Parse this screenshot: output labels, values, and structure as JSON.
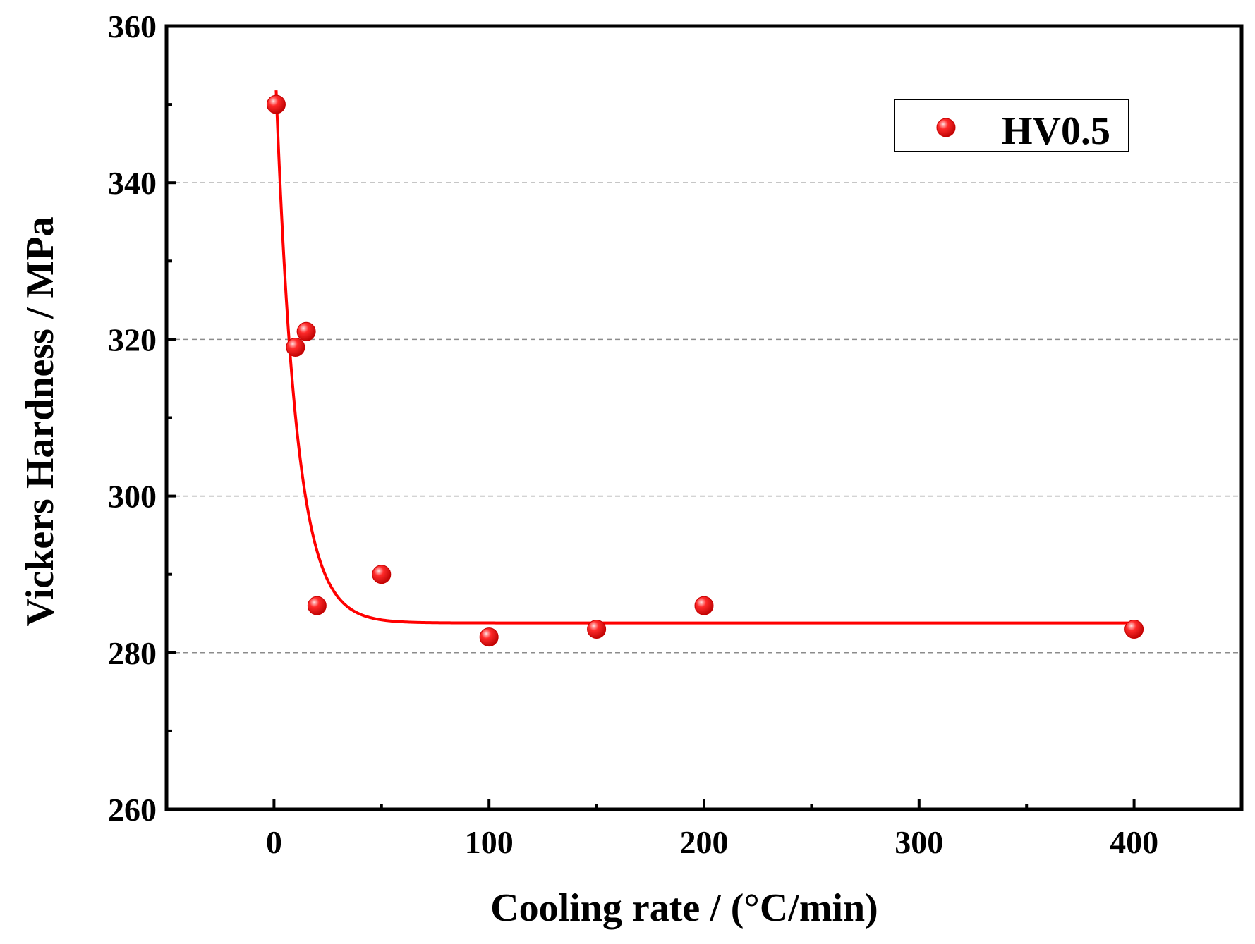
{
  "chart_data": {
    "type": "scatter",
    "title": "",
    "xlabel": "Cooling rate / (°C/min)",
    "ylabel": "Vickers Hardness / MPa",
    "xlim": [
      -50,
      450
    ],
    "ylim": [
      260,
      360
    ],
    "x_ticks": [
      0,
      100,
      200,
      300,
      400
    ],
    "x_tick_labels": [
      "0",
      "100",
      "200",
      "300",
      "400"
    ],
    "x_minor_ticks": [
      50,
      150,
      250,
      350
    ],
    "y_ticks": [
      260,
      280,
      300,
      320,
      340,
      360
    ],
    "y_tick_labels": [
      "260",
      "280",
      "300",
      "320",
      "340",
      "360"
    ],
    "y_minor_ticks": [
      270,
      290,
      310,
      330,
      350
    ],
    "grid_y": [
      280,
      300,
      320,
      340
    ],
    "legend": {
      "position": "top-right",
      "entries": [
        "HV0.5"
      ]
    },
    "series": [
      {
        "name": "HV0.5",
        "color": "#ff0000",
        "x": [
          1,
          10,
          15,
          20,
          50,
          100,
          150,
          200,
          400
        ],
        "y": [
          350,
          319,
          321,
          286,
          290,
          282,
          283,
          286,
          283
        ]
      }
    ],
    "fit": {
      "type": "exponential-decay",
      "color": "#ff0000",
      "y0": 283.8,
      "a": 68,
      "t": 9.5,
      "x_start": 1,
      "x_end": 400
    }
  }
}
